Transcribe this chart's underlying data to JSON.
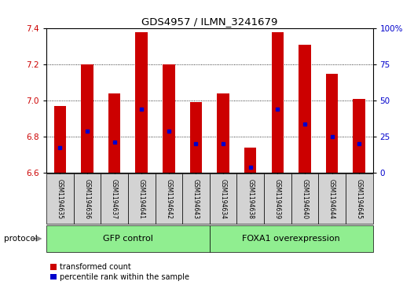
{
  "title": "GDS4957 / ILMN_3241679",
  "samples": [
    "GSM1194635",
    "GSM1194636",
    "GSM1194637",
    "GSM1194641",
    "GSM1194642",
    "GSM1194643",
    "GSM1194634",
    "GSM1194638",
    "GSM1194639",
    "GSM1194640",
    "GSM1194644",
    "GSM1194645"
  ],
  "red_values": [
    6.97,
    7.2,
    7.04,
    7.38,
    7.2,
    6.99,
    7.04,
    6.74,
    7.38,
    7.31,
    7.15,
    7.01
  ],
  "blue_values": [
    6.74,
    6.83,
    6.77,
    6.95,
    6.83,
    6.76,
    6.76,
    6.63,
    6.95,
    6.87,
    6.8,
    6.76
  ],
  "ylim_left": [
    6.6,
    7.4
  ],
  "yticks_left": [
    6.6,
    6.8,
    7.0,
    7.2,
    7.4
  ],
  "yticks_right": [
    0,
    25,
    50,
    75,
    100
  ],
  "groups": [
    {
      "label": "GFP control",
      "start": 0,
      "end": 6,
      "color": "#90EE90"
    },
    {
      "label": "FOXA1 overexpression",
      "start": 6,
      "end": 12,
      "color": "#90EE90"
    }
  ],
  "protocol_label": "protocol",
  "bar_color": "#cc0000",
  "blue_color": "#0000cc",
  "tick_label_color_left": "#cc0000",
  "tick_label_color_right": "#0000cc",
  "legend_red_label": "transformed count",
  "legend_blue_label": "percentile rank within the sample",
  "bar_width": 0.45,
  "base_value": 6.6,
  "sample_box_color": "#d3d3d3",
  "grid_color": "#000000",
  "spine_color": "#000000"
}
